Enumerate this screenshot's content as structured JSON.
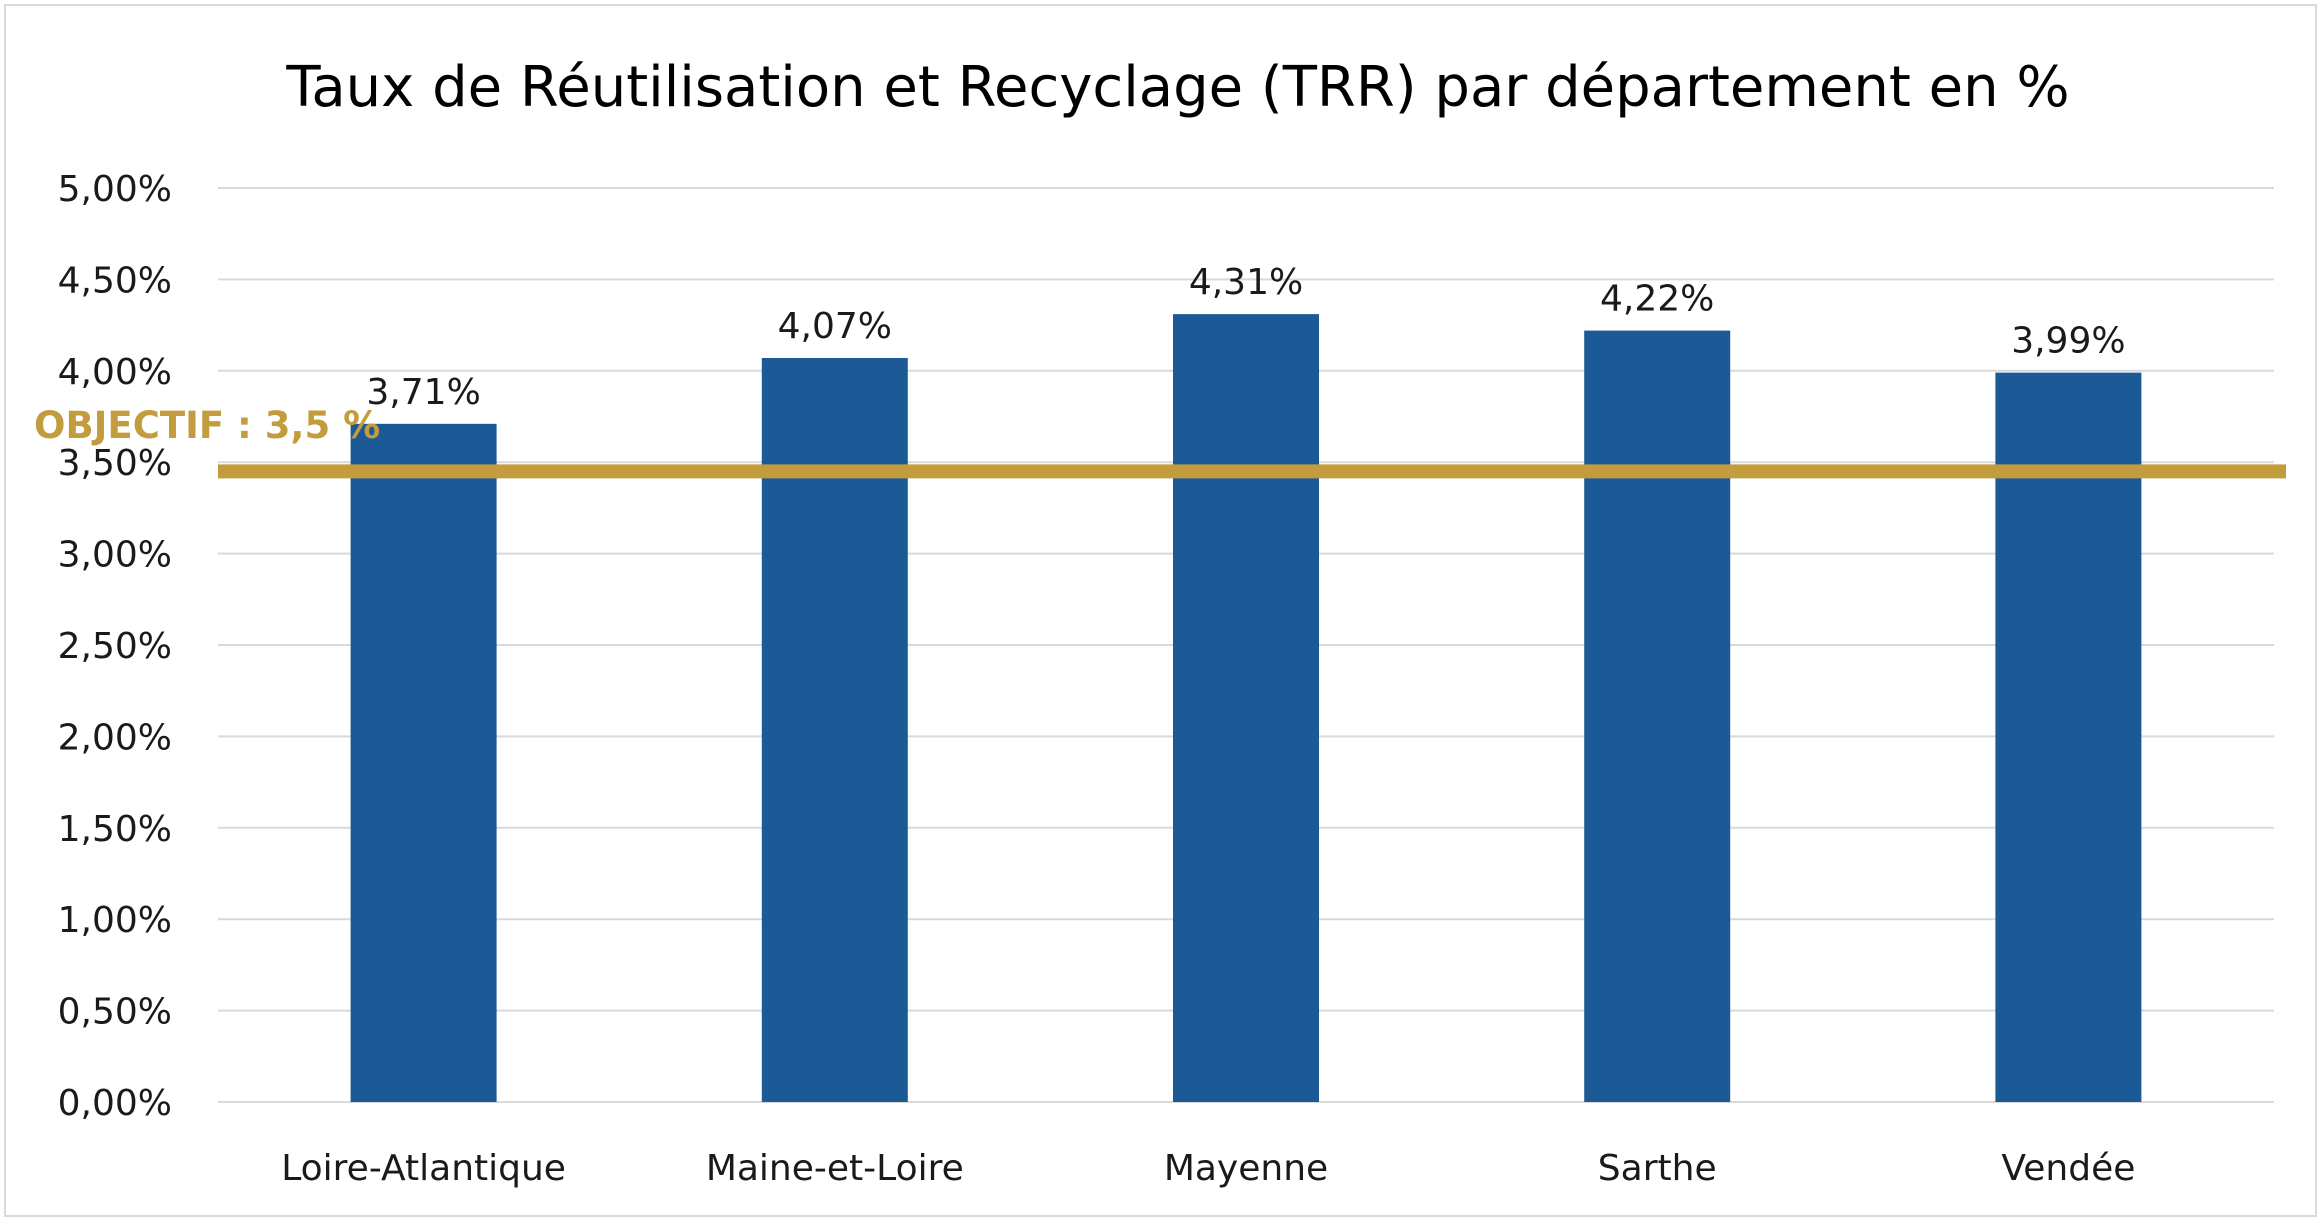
{
  "chart_data": {
    "type": "bar",
    "title": "Taux de Réutilisation et Recyclage (TRR) par département en %",
    "xlabel": "",
    "ylabel": "",
    "categories": [
      "Loire-Atlantique",
      "Maine-et-Loire",
      "Mayenne",
      "Sarthe",
      "Vendée"
    ],
    "values": [
      3.71,
      4.07,
      4.31,
      4.22,
      3.99
    ],
    "value_labels": [
      "3,71%",
      "4,07%",
      "4,31%",
      "4,22%",
      "3,99%"
    ],
    "ylim": [
      0,
      5
    ],
    "yticks": [
      0,
      0.5,
      1,
      1.5,
      2,
      2.5,
      3,
      3.5,
      4,
      4.5,
      5
    ],
    "ytick_labels": [
      "0,00%",
      "0,50%",
      "1,00%",
      "1,50%",
      "2,00%",
      "2,50%",
      "3,00%",
      "3,50%",
      "4,00%",
      "4,50%",
      "5,00%"
    ],
    "grid": true,
    "legend": "none",
    "bar_color": "#1b5a96",
    "objective": {
      "value": 3.45,
      "label": "OBJECTIF : 3,5 %",
      "color": "#c39c3e"
    }
  }
}
